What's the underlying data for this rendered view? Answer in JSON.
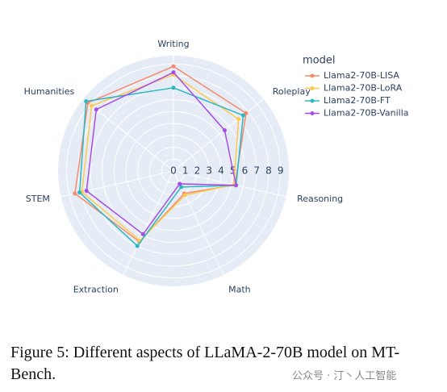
{
  "chart_data": {
    "type": "radar",
    "categories": [
      "Writing",
      "Roleplay",
      "Reasoning",
      "Math",
      "Extraction",
      "STEM",
      "Humanities"
    ],
    "series": [
      {
        "name": "Llama2-70B-LISA",
        "color": "#f8896b",
        "values": [
          8.8,
          7.8,
          5.3,
          2.1,
          6.6,
          8.5,
          9.2
        ]
      },
      {
        "name": "Llama2-70B-LoRA",
        "color": "#fdc94e",
        "values": [
          8.1,
          7.0,
          5.2,
          2.25,
          6.5,
          7.9,
          8.8
        ]
      },
      {
        "name": "Llama2-70B-FT",
        "color": "#2cb7c2",
        "values": [
          7.0,
          7.5,
          5.4,
          1.5,
          7.0,
          8.1,
          9.4
        ]
      },
      {
        "name": "Llama2-70B-Vanilla",
        "color": "#a64ce6",
        "values": [
          8.3,
          5.5,
          5.4,
          1.2,
          5.9,
          7.5,
          8.3
        ]
      }
    ],
    "rlim": [
      0,
      9.7
    ],
    "rticks": [
      0,
      1,
      2,
      3,
      4,
      5,
      6,
      7,
      8,
      9
    ],
    "legend_title": "model",
    "grid": true
  },
  "caption": "Figure 5: Different aspects of LLaMA-2-70B model on MT-Bench.",
  "watermark": "公众号 · 汀丶人工智能"
}
